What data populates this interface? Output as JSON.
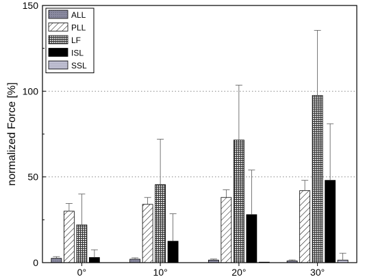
{
  "chart_data": {
    "type": "bar",
    "title": "",
    "xlabel": "",
    "ylabel": "normalized Force [%]",
    "ylim": [
      0,
      150
    ],
    "yticks": [
      0,
      50,
      100,
      150
    ],
    "grid": "dotted horizontal at 50 and 100",
    "legend_position": "top-left",
    "categories": [
      "0°",
      "10°",
      "20°",
      "30°"
    ],
    "series": [
      {
        "name": "ALL",
        "values": [
          2.5,
          2.0,
          1.5,
          1.0
        ],
        "errors": [
          1.0,
          0.8,
          0.6,
          0.6
        ],
        "pattern": "grey"
      },
      {
        "name": "PLL",
        "values": [
          30,
          34,
          38,
          42
        ],
        "errors": [
          4.5,
          4.0,
          4.5,
          6.0
        ],
        "pattern": "hatch"
      },
      {
        "name": "LF",
        "values": [
          22,
          45.5,
          71.5,
          97.5
        ],
        "errors": [
          18,
          26.5,
          32,
          38
        ],
        "pattern": "grid"
      },
      {
        "name": "ISL",
        "values": [
          3,
          12.5,
          28,
          48
        ],
        "errors": [
          4.5,
          16,
          26,
          33
        ],
        "pattern": "black"
      },
      {
        "name": "SSL",
        "values": [
          0,
          0,
          0.3,
          1.5
        ],
        "errors": [
          0,
          0,
          0,
          4.0
        ],
        "pattern": "light"
      }
    ]
  }
}
